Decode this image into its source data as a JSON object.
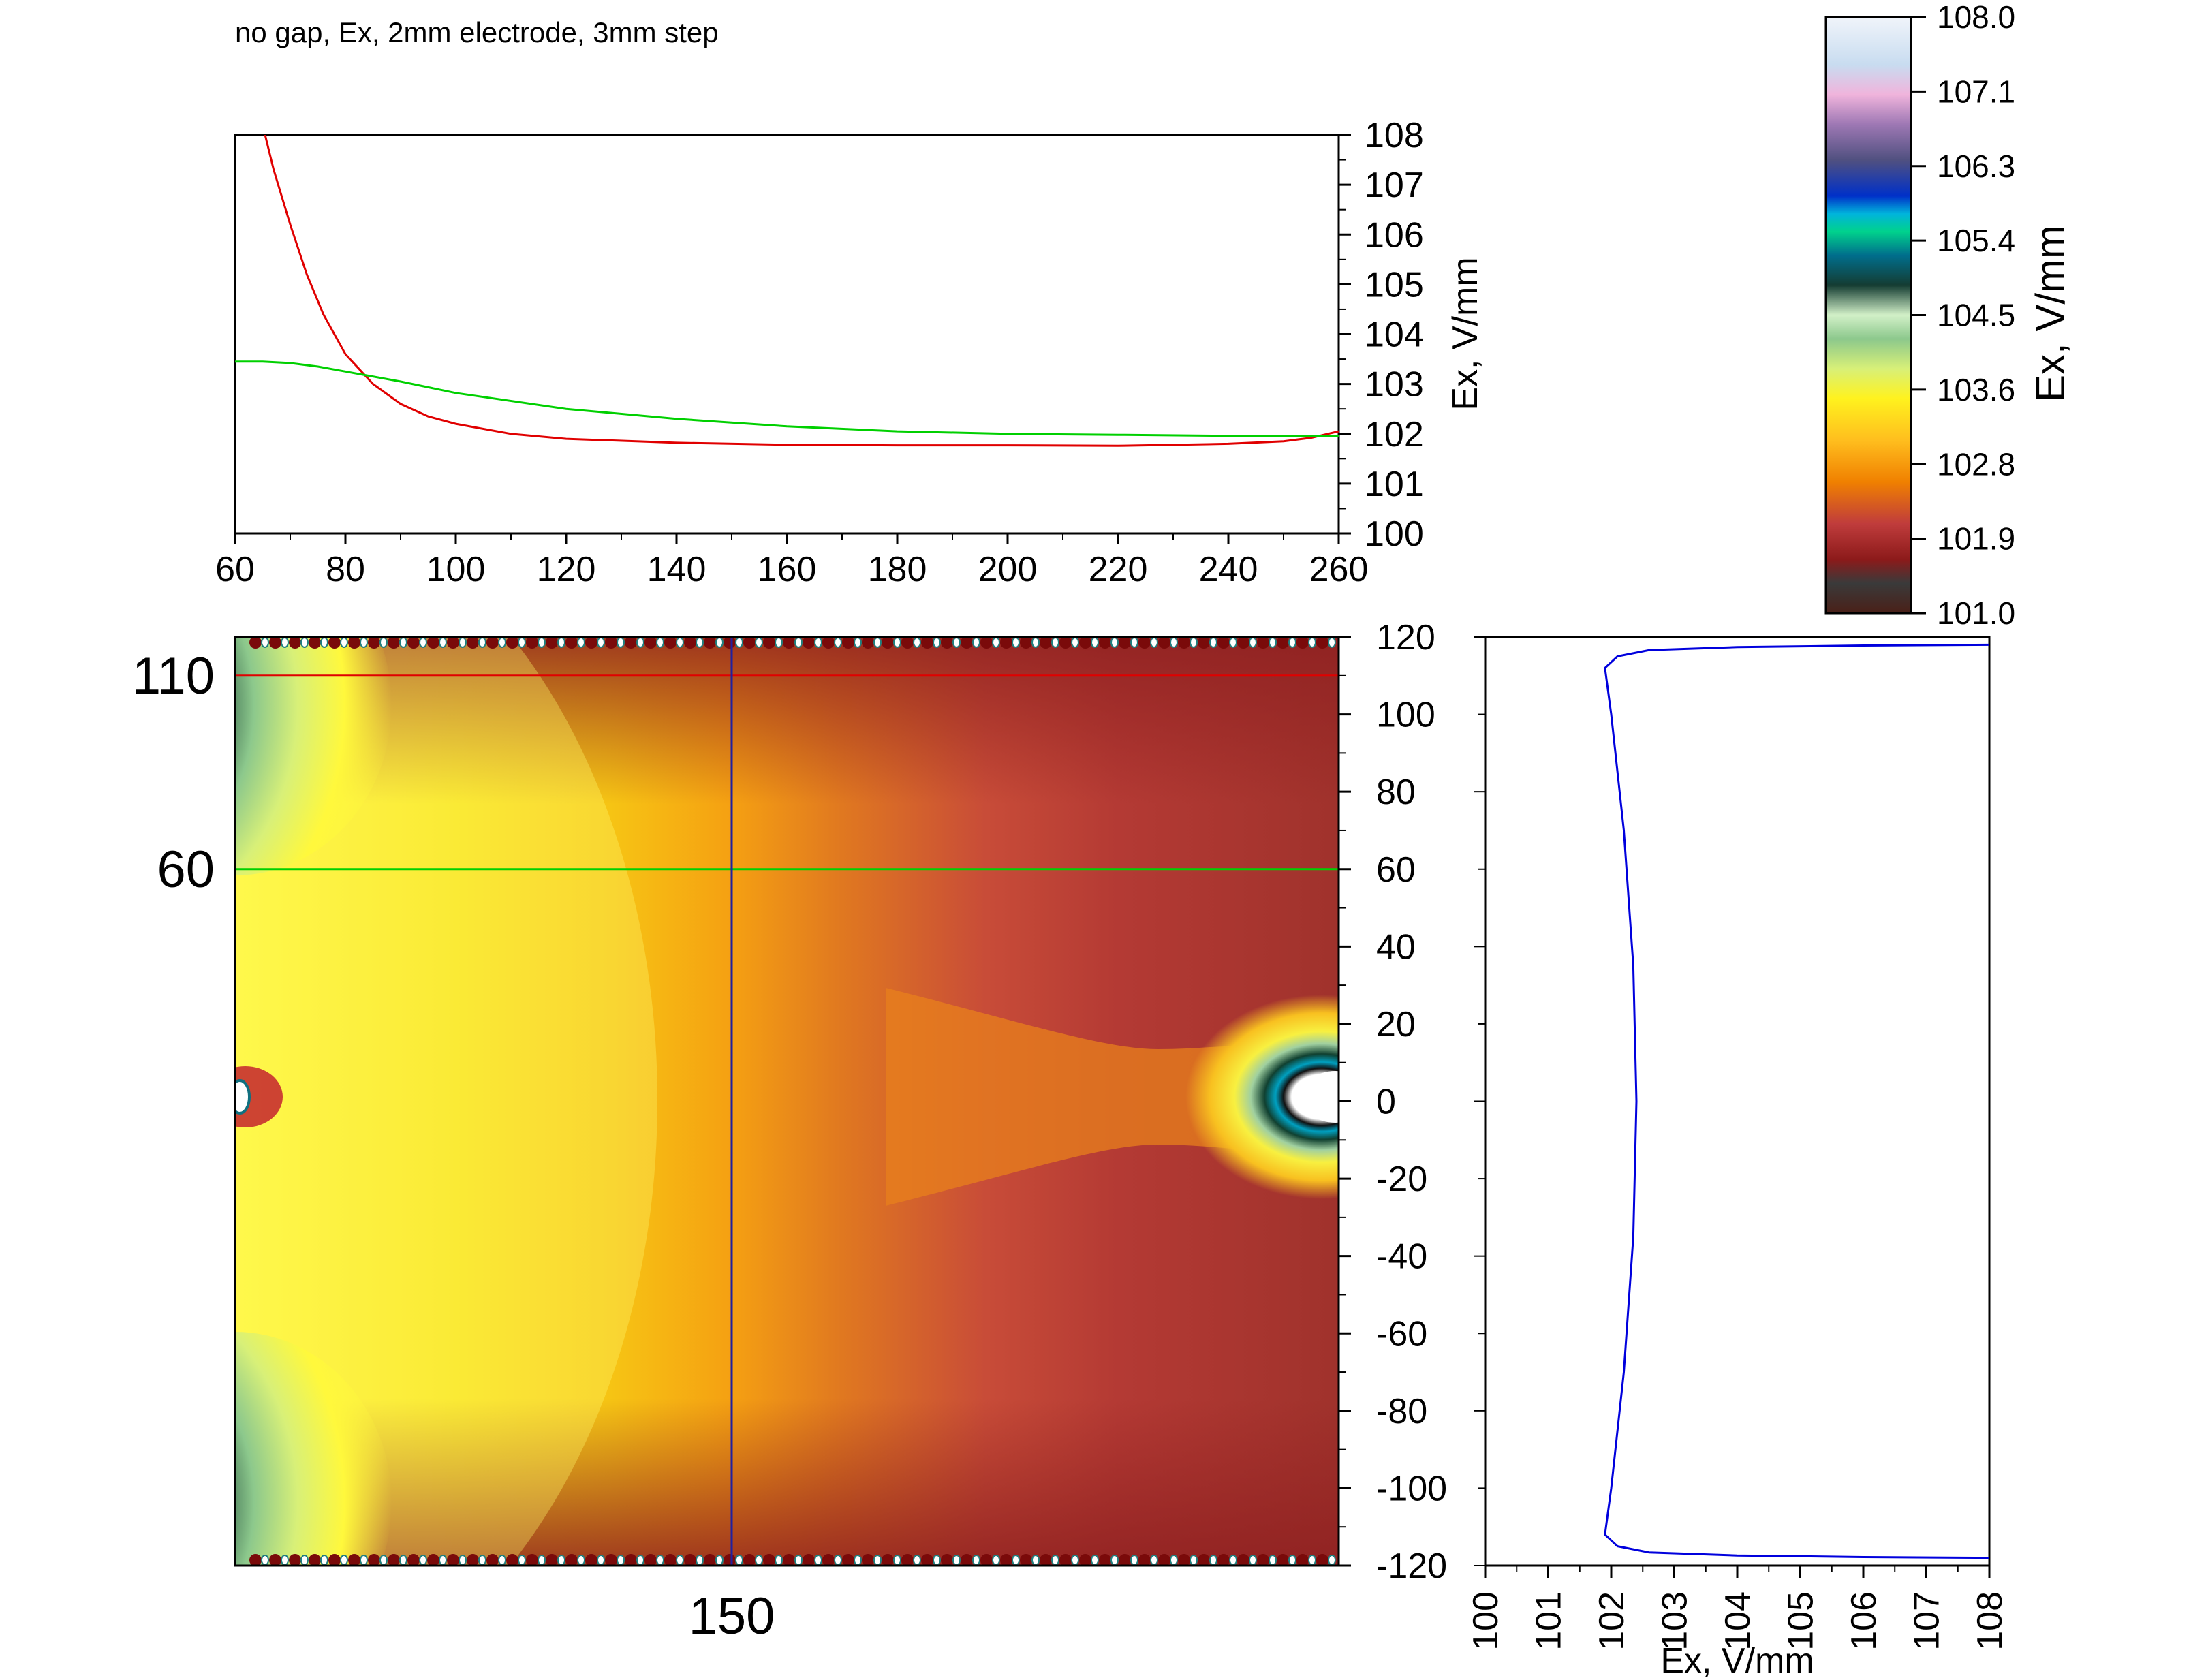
{
  "title": "no gap, Ex, 2mm electrode, 3mm step",
  "colors": {
    "red_line": "#e00000",
    "green_line": "#00d000",
    "blue_line": "#0000dd",
    "vertical_marker": "#2020a0"
  },
  "chart_data": [
    {
      "id": "top-profiles",
      "type": "line",
      "x_ticks": [
        60,
        80,
        100,
        120,
        140,
        160,
        180,
        200,
        220,
        240,
        260
      ],
      "y_ticks": [
        100,
        101,
        102,
        103,
        104,
        105,
        106,
        107,
        108
      ],
      "xlim": [
        60,
        260
      ],
      "ylim": [
        100,
        108
      ],
      "ylabel": "Ex, V/mm",
      "series": [
        {
          "color": "#e00000",
          "x": [
            65,
            67,
            70,
            73,
            76,
            80,
            85,
            90,
            95,
            100,
            110,
            120,
            140,
            160,
            180,
            200,
            220,
            240,
            250,
            255,
            260
          ],
          "y": [
            108.2,
            107.3,
            106.2,
            105.2,
            104.4,
            103.6,
            103.0,
            102.6,
            102.35,
            102.2,
            102.0,
            101.9,
            101.82,
            101.78,
            101.77,
            101.77,
            101.76,
            101.8,
            101.85,
            101.92,
            102.05
          ]
        },
        {
          "color": "#00d000",
          "x": [
            60,
            65,
            70,
            75,
            80,
            90,
            100,
            120,
            140,
            160,
            180,
            200,
            220,
            240,
            260
          ],
          "y": [
            103.45,
            103.45,
            103.42,
            103.35,
            103.25,
            103.05,
            102.82,
            102.5,
            102.3,
            102.15,
            102.05,
            102.0,
            101.98,
            101.96,
            101.95
          ]
        }
      ]
    },
    {
      "id": "contour-map",
      "type": "heatmap",
      "xlim": [
        60,
        260
      ],
      "ylim": [
        -120,
        120
      ],
      "y_ticks": [
        -120,
        -100,
        -80,
        -60,
        -40,
        -20,
        0,
        20,
        40,
        60,
        80,
        100,
        120
      ],
      "row_markers": [
        110,
        60
      ],
      "column_markers": [
        150
      ]
    },
    {
      "id": "side-profile",
      "type": "line",
      "xlim": [
        100,
        108
      ],
      "ylim": [
        -120,
        120
      ],
      "x_ticks": [
        100,
        101,
        102,
        103,
        104,
        105,
        106,
        107,
        108
      ],
      "xlabel": "Ex, V/mm",
      "series": [
        {
          "color": "#0000dd",
          "x": [
            108.0,
            106,
            104,
            102.6,
            102.1,
            101.9,
            102.0,
            102.2,
            102.35,
            102.4,
            102.35,
            102.2,
            102.0,
            101.9,
            102.1,
            102.6,
            104,
            106,
            108.0
          ],
          "y": [
            -118,
            -117.8,
            -117.4,
            -116.6,
            -115,
            -112,
            -100,
            -70,
            -35,
            0,
            35,
            70,
            100,
            112,
            115,
            116.6,
            117.4,
            117.8,
            118
          ]
        }
      ]
    },
    {
      "id": "colorbar",
      "type": "colorbar",
      "range": [
        101.0,
        108.0
      ],
      "tick_labels": [
        "101.0",
        "101.9",
        "102.8",
        "103.6",
        "104.5",
        "105.4",
        "106.3",
        "107.1",
        "108.0"
      ],
      "label": "Ex, V/mm"
    }
  ]
}
